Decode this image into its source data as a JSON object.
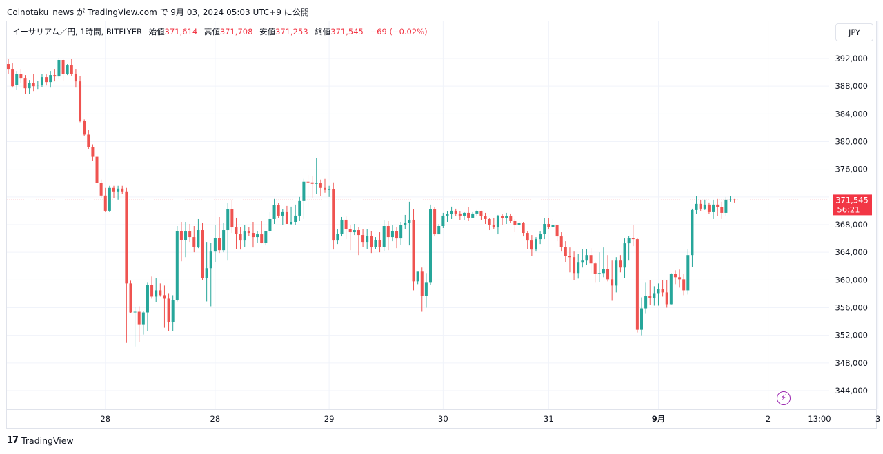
{
  "header": {
    "published": "Coinotaku_news が TradingView.com で 9月 03, 2024 05:03 UTC+9 に公開"
  },
  "legend": {
    "symbol": "イーサリアム／円, 1時間, BITFLYER",
    "open_label": "始値",
    "open_value": "371,614",
    "high_label": "高値",
    "high_value": "371,708",
    "low_label": "安値",
    "low_value": "371,253",
    "close_label": "終値",
    "close_value": "371,545",
    "change": "−69 (−0.02%)"
  },
  "currency_button": "JPY",
  "price_tag": {
    "price": "371,545",
    "countdown": "56:21"
  },
  "footer": {
    "brand_mark": "𝟭𝟳",
    "brand": "TradingView"
  },
  "icons": {
    "bolt": "lightning-icon"
  },
  "colors": {
    "up": "#26a69a",
    "down": "#ef5350",
    "grid": "#f0f3fa",
    "price_line": "#f23645"
  },
  "chart_data": {
    "type": "candlestick",
    "ylim": [
      340000,
      396000
    ],
    "y_ticks": [
      {
        "value": 392000,
        "label": "392,000"
      },
      {
        "value": 388000,
        "label": "388,000"
      },
      {
        "value": 384000,
        "label": "384,000"
      },
      {
        "value": 380000,
        "label": "380,000"
      },
      {
        "value": 376000,
        "label": "376,000"
      },
      {
        "value": 372000,
        "label": ""
      },
      {
        "value": 368000,
        "label": "368,000"
      },
      {
        "value": 364000,
        "label": "364,000"
      },
      {
        "value": 360000,
        "label": "360,000"
      },
      {
        "value": 356000,
        "label": "356,000"
      },
      {
        "value": 352000,
        "label": "352,000"
      },
      {
        "value": 348000,
        "label": "348,000"
      },
      {
        "value": 344000,
        "label": "344,000"
      }
    ],
    "x_ticks": [
      {
        "index": 23,
        "label": "28"
      },
      {
        "index": 49,
        "label": "28"
      },
      {
        "index": 76,
        "label": "29"
      },
      {
        "index": 103,
        "label": "30"
      },
      {
        "index": 128,
        "label": "31"
      },
      {
        "index": 154,
        "label": "9月"
      },
      {
        "index": 180,
        "label": "2"
      },
      {
        "index": 206,
        "label": "3"
      },
      {
        "index": 220,
        "label": "13:00"
      }
    ],
    "last_price": 371545,
    "candles": [
      [
        391200,
        391900,
        389800,
        390500
      ],
      [
        390500,
        391300,
        387800,
        388000
      ],
      [
        388200,
        390200,
        387500,
        389800
      ],
      [
        389800,
        390500,
        388500,
        389200
      ],
      [
        389200,
        389600,
        386900,
        387700
      ],
      [
        387700,
        388900,
        386900,
        388500
      ],
      [
        388500,
        389800,
        387300,
        388000
      ],
      [
        388100,
        388800,
        387600,
        388200
      ],
      [
        388200,
        389800,
        387900,
        389300
      ],
      [
        389300,
        389700,
        388100,
        388600
      ],
      [
        388600,
        390200,
        387800,
        389600
      ],
      [
        389600,
        390500,
        388700,
        389400
      ],
      [
        389400,
        392100,
        389000,
        391800
      ],
      [
        391800,
        392000,
        388800,
        389800
      ],
      [
        389800,
        391200,
        389600,
        391000
      ],
      [
        391000,
        391900,
        389500,
        389800
      ],
      [
        389800,
        390500,
        387800,
        388700
      ],
      [
        388700,
        389500,
        382800,
        383000
      ],
      [
        383000,
        383200,
        380800,
        381000
      ],
      [
        381000,
        381700,
        378900,
        379200
      ],
      [
        379200,
        379600,
        377200,
        377800
      ],
      [
        377800,
        378200,
        373500,
        374000
      ],
      [
        374000,
        374500,
        371800,
        372200
      ],
      [
        372200,
        373300,
        369800,
        370000
      ],
      [
        370000,
        373600,
        369800,
        373300
      ],
      [
        373300,
        373600,
        371800,
        372800
      ],
      [
        372800,
        373600,
        371600,
        373200
      ],
      [
        373200,
        373600,
        372400,
        372800
      ],
      [
        372800,
        373300,
        350900,
        359500
      ],
      [
        359500,
        359900,
        355200,
        355300
      ],
      [
        355300,
        356100,
        350400,
        355400
      ],
      [
        355400,
        356200,
        351000,
        353500
      ],
      [
        353500,
        355500,
        352100,
        355300
      ],
      [
        355300,
        359600,
        352600,
        359300
      ],
      [
        359300,
        360500,
        357300,
        357600
      ],
      [
        357600,
        360300,
        356800,
        358500
      ],
      [
        358500,
        359500,
        357600,
        357800
      ],
      [
        357800,
        359200,
        353100,
        357300
      ],
      [
        357300,
        358000,
        352600,
        353900
      ],
      [
        353900,
        357800,
        352600,
        357100
      ],
      [
        357100,
        367800,
        356900,
        367100
      ],
      [
        367100,
        368400,
        362700,
        365800
      ],
      [
        365800,
        368400,
        363300,
        367000
      ],
      [
        367000,
        368100,
        365500,
        366200
      ],
      [
        366200,
        367800,
        364000,
        364800
      ],
      [
        364800,
        368800,
        364600,
        367200
      ],
      [
        367200,
        368300,
        360000,
        360300
      ],
      [
        360300,
        365500,
        356900,
        361700
      ],
      [
        361700,
        365400,
        356200,
        364100
      ],
      [
        364100,
        367900,
        362600,
        366100
      ],
      [
        366100,
        369100,
        363900,
        364300
      ],
      [
        364300,
        368300,
        364000,
        367200
      ],
      [
        367200,
        371100,
        362800,
        370200
      ],
      [
        370200,
        371600,
        366800,
        367600
      ],
      [
        367600,
        369000,
        364500,
        366700
      ],
      [
        366700,
        367700,
        364400,
        365700
      ],
      [
        365700,
        368000,
        364800,
        367000
      ],
      [
        367000,
        367600,
        366400,
        366800
      ],
      [
        366800,
        368400,
        364700,
        366200
      ],
      [
        366200,
        367100,
        365400,
        366600
      ],
      [
        366600,
        368500,
        365300,
        365400
      ],
      [
        365400,
        367100,
        365000,
        367100
      ],
      [
        367100,
        369800,
        366800,
        368800
      ],
      [
        368800,
        371700,
        368100,
        370800
      ],
      [
        370800,
        371100,
        368900,
        369300
      ],
      [
        369300,
        370200,
        367900,
        369800
      ],
      [
        369800,
        370700,
        368100,
        368100
      ],
      [
        368100,
        370600,
        367900,
        368400
      ],
      [
        368400,
        370900,
        367900,
        369300
      ],
      [
        369300,
        372000,
        368500,
        371400
      ],
      [
        371400,
        374600,
        368800,
        374200
      ],
      [
        374200,
        375200,
        370600,
        374100
      ],
      [
        374100,
        375000,
        371900,
        373900
      ],
      [
        373900,
        377600,
        372400,
        374000
      ],
      [
        374000,
        374500,
        372100,
        373300
      ],
      [
        373300,
        374600,
        372600,
        373000
      ],
      [
        373000,
        373600,
        372000,
        373100
      ],
      [
        373100,
        374100,
        364400,
        365700
      ],
      [
        365700,
        367300,
        365200,
        366700
      ],
      [
        366700,
        369100,
        366300,
        368700
      ],
      [
        368700,
        369300,
        365900,
        367300
      ],
      [
        367300,
        367900,
        364300,
        366900
      ],
      [
        366900,
        368100,
        366500,
        367200
      ],
      [
        367200,
        367700,
        363600,
        366500
      ],
      [
        366500,
        367300,
        364800,
        365500
      ],
      [
        365500,
        367300,
        364500,
        366400
      ],
      [
        366400,
        367100,
        363900,
        364800
      ],
      [
        364800,
        366200,
        364500,
        365800
      ],
      [
        365800,
        366900,
        364000,
        364800
      ],
      [
        364800,
        368700,
        364200,
        367800
      ],
      [
        367800,
        368500,
        364300,
        366200
      ],
      [
        366200,
        368000,
        365600,
        367100
      ],
      [
        367100,
        367700,
        364600,
        366000
      ],
      [
        366000,
        368400,
        365100,
        367900
      ],
      [
        367900,
        369400,
        367300,
        368300
      ],
      [
        368300,
        371300,
        365000,
        368700
      ],
      [
        368700,
        370200,
        358500,
        359800
      ],
      [
        359800,
        361100,
        359400,
        361200
      ],
      [
        361200,
        361800,
        355400,
        357700
      ],
      [
        357700,
        361000,
        356000,
        359600
      ],
      [
        359600,
        370900,
        359300,
        370200
      ],
      [
        370200,
        370500,
        366300,
        366600
      ],
      [
        366600,
        368100,
        366600,
        367800
      ],
      [
        367800,
        369700,
        367500,
        369300
      ],
      [
        369300,
        369900,
        368400,
        369500
      ],
      [
        369500,
        370600,
        368800,
        370000
      ],
      [
        370000,
        370300,
        369200,
        369600
      ],
      [
        369600,
        369900,
        368600,
        369300
      ],
      [
        369300,
        369800,
        368700,
        369700
      ],
      [
        369700,
        370500,
        368500,
        369000
      ],
      [
        369000,
        369800,
        368900,
        369600
      ],
      [
        369600,
        370100,
        369200,
        369900
      ],
      [
        369900,
        370000,
        368600,
        369200
      ],
      [
        369200,
        369700,
        368100,
        368800
      ],
      [
        368800,
        368900,
        367200,
        368000
      ],
      [
        368000,
        369000,
        367400,
        367600
      ],
      [
        367600,
        369400,
        366600,
        369200
      ],
      [
        369200,
        369500,
        368000,
        368900
      ],
      [
        368900,
        369700,
        368100,
        369200
      ],
      [
        369200,
        369600,
        368300,
        368500
      ],
      [
        368500,
        368800,
        366900,
        367900
      ],
      [
        367900,
        368500,
        367500,
        368300
      ],
      [
        368300,
        368400,
        366300,
        366800
      ],
      [
        366800,
        367000,
        364500,
        365700
      ],
      [
        365700,
        366500,
        363500,
        364400
      ],
      [
        364400,
        366200,
        364100,
        365900
      ],
      [
        365900,
        367000,
        365200,
        366700
      ],
      [
        366700,
        368900,
        365900,
        368100
      ],
      [
        368100,
        368900,
        367300,
        367700
      ],
      [
        367700,
        368800,
        367400,
        367900
      ],
      [
        367900,
        368000,
        365600,
        366300
      ],
      [
        366300,
        366900,
        364100,
        364800
      ],
      [
        364800,
        365600,
        362600,
        363500
      ],
      [
        363500,
        364700,
        361100,
        363300
      ],
      [
        363300,
        364100,
        360000,
        361000
      ],
      [
        361000,
        363800,
        360200,
        362500
      ],
      [
        362500,
        364500,
        361800,
        362800
      ],
      [
        362800,
        364500,
        362200,
        363600
      ],
      [
        363600,
        364600,
        361000,
        362400
      ],
      [
        362400,
        362600,
        359600,
        360900
      ],
      [
        360900,
        364000,
        359700,
        361000
      ],
      [
        361000,
        364700,
        360400,
        361600
      ],
      [
        361600,
        363600,
        359800,
        360100
      ],
      [
        360100,
        362800,
        357000,
        359200
      ],
      [
        359200,
        363300,
        358200,
        362800
      ],
      [
        362800,
        363600,
        361100,
        361800
      ],
      [
        361800,
        366000,
        360300,
        365300
      ],
      [
        365300,
        366400,
        362800,
        366100
      ],
      [
        366100,
        368000,
        364900,
        365900
      ],
      [
        365900,
        366000,
        352400,
        352800
      ],
      [
        352800,
        357500,
        352000,
        355900
      ],
      [
        355900,
        359600,
        355100,
        357700
      ],
      [
        357700,
        360000,
        356400,
        357400
      ],
      [
        357400,
        359100,
        356300,
        358000
      ],
      [
        358000,
        359500,
        356300,
        358700
      ],
      [
        358700,
        360000,
        357600,
        358200
      ],
      [
        358200,
        360000,
        356000,
        356500
      ],
      [
        356500,
        361000,
        356400,
        360900
      ],
      [
        360900,
        361400,
        359400,
        360400
      ],
      [
        360400,
        361500,
        358900,
        360100
      ],
      [
        360100,
        360900,
        357800,
        358500
      ],
      [
        358500,
        364500,
        357900,
        363600
      ],
      [
        363600,
        370300,
        361900,
        370100
      ],
      [
        370100,
        372100,
        369500,
        371000
      ],
      [
        371000,
        371500,
        370000,
        370300
      ],
      [
        370300,
        371600,
        370100,
        370900
      ],
      [
        370900,
        371200,
        369500,
        369800
      ],
      [
        369800,
        371600,
        368800,
        370900
      ],
      [
        370900,
        371700,
        369200,
        370500
      ],
      [
        370500,
        371300,
        368800,
        369700
      ],
      [
        369700,
        372000,
        369200,
        371600
      ],
      [
        371600,
        372100,
        371300,
        371600
      ],
      [
        371600,
        371700,
        371200,
        371500
      ]
    ]
  }
}
